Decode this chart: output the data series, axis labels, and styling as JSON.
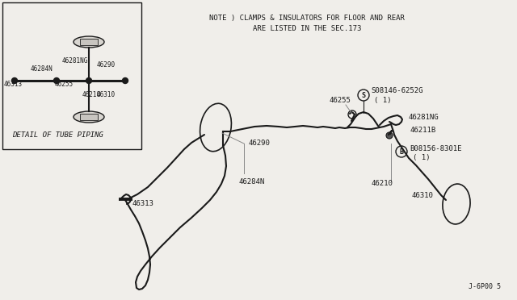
{
  "note_line1": "NOTE ) CLAMPS & INSULATORS FOR FLOOR AND REAR",
  "note_line2": "ARE LISTED IN THE SEC.173",
  "diagram_id": "J-6P00 5",
  "bg_color": "#f0eeea",
  "line_color": "#1a1a1a",
  "inset_label": "DETAIL OF TUBE PIPING",
  "inset_parts": [
    "46281NG",
    "46290",
    "46284N",
    "46313",
    "46255",
    "46210",
    "46310"
  ]
}
